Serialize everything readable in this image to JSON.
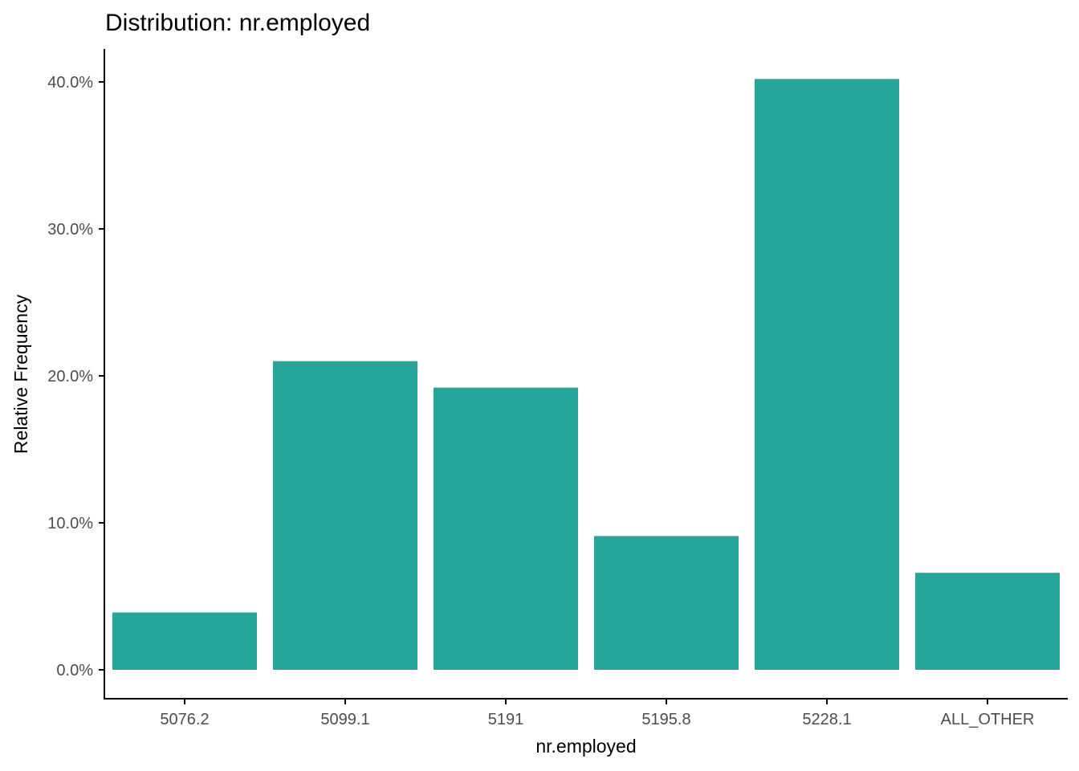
{
  "chart_data": {
    "type": "bar",
    "title": "Distribution: nr.employed",
    "xlabel": "nr.employed",
    "ylabel": "Relative Frequency",
    "categories": [
      "5076.2",
      "5099.1",
      "5191",
      "5195.8",
      "5228.1",
      "ALL_OTHER"
    ],
    "values": [
      3.9,
      21.0,
      19.2,
      9.1,
      40.2,
      6.6
    ],
    "value_unit": "percent",
    "ylim": [
      0,
      42
    ],
    "y_ticks": [
      0,
      10,
      20,
      30,
      40
    ],
    "y_tick_labels": [
      "0.0%",
      "10.0%",
      "20.0%",
      "30.0%",
      "40.0%"
    ],
    "grid": false,
    "legend": "none",
    "bar_color": "#26a69a"
  }
}
